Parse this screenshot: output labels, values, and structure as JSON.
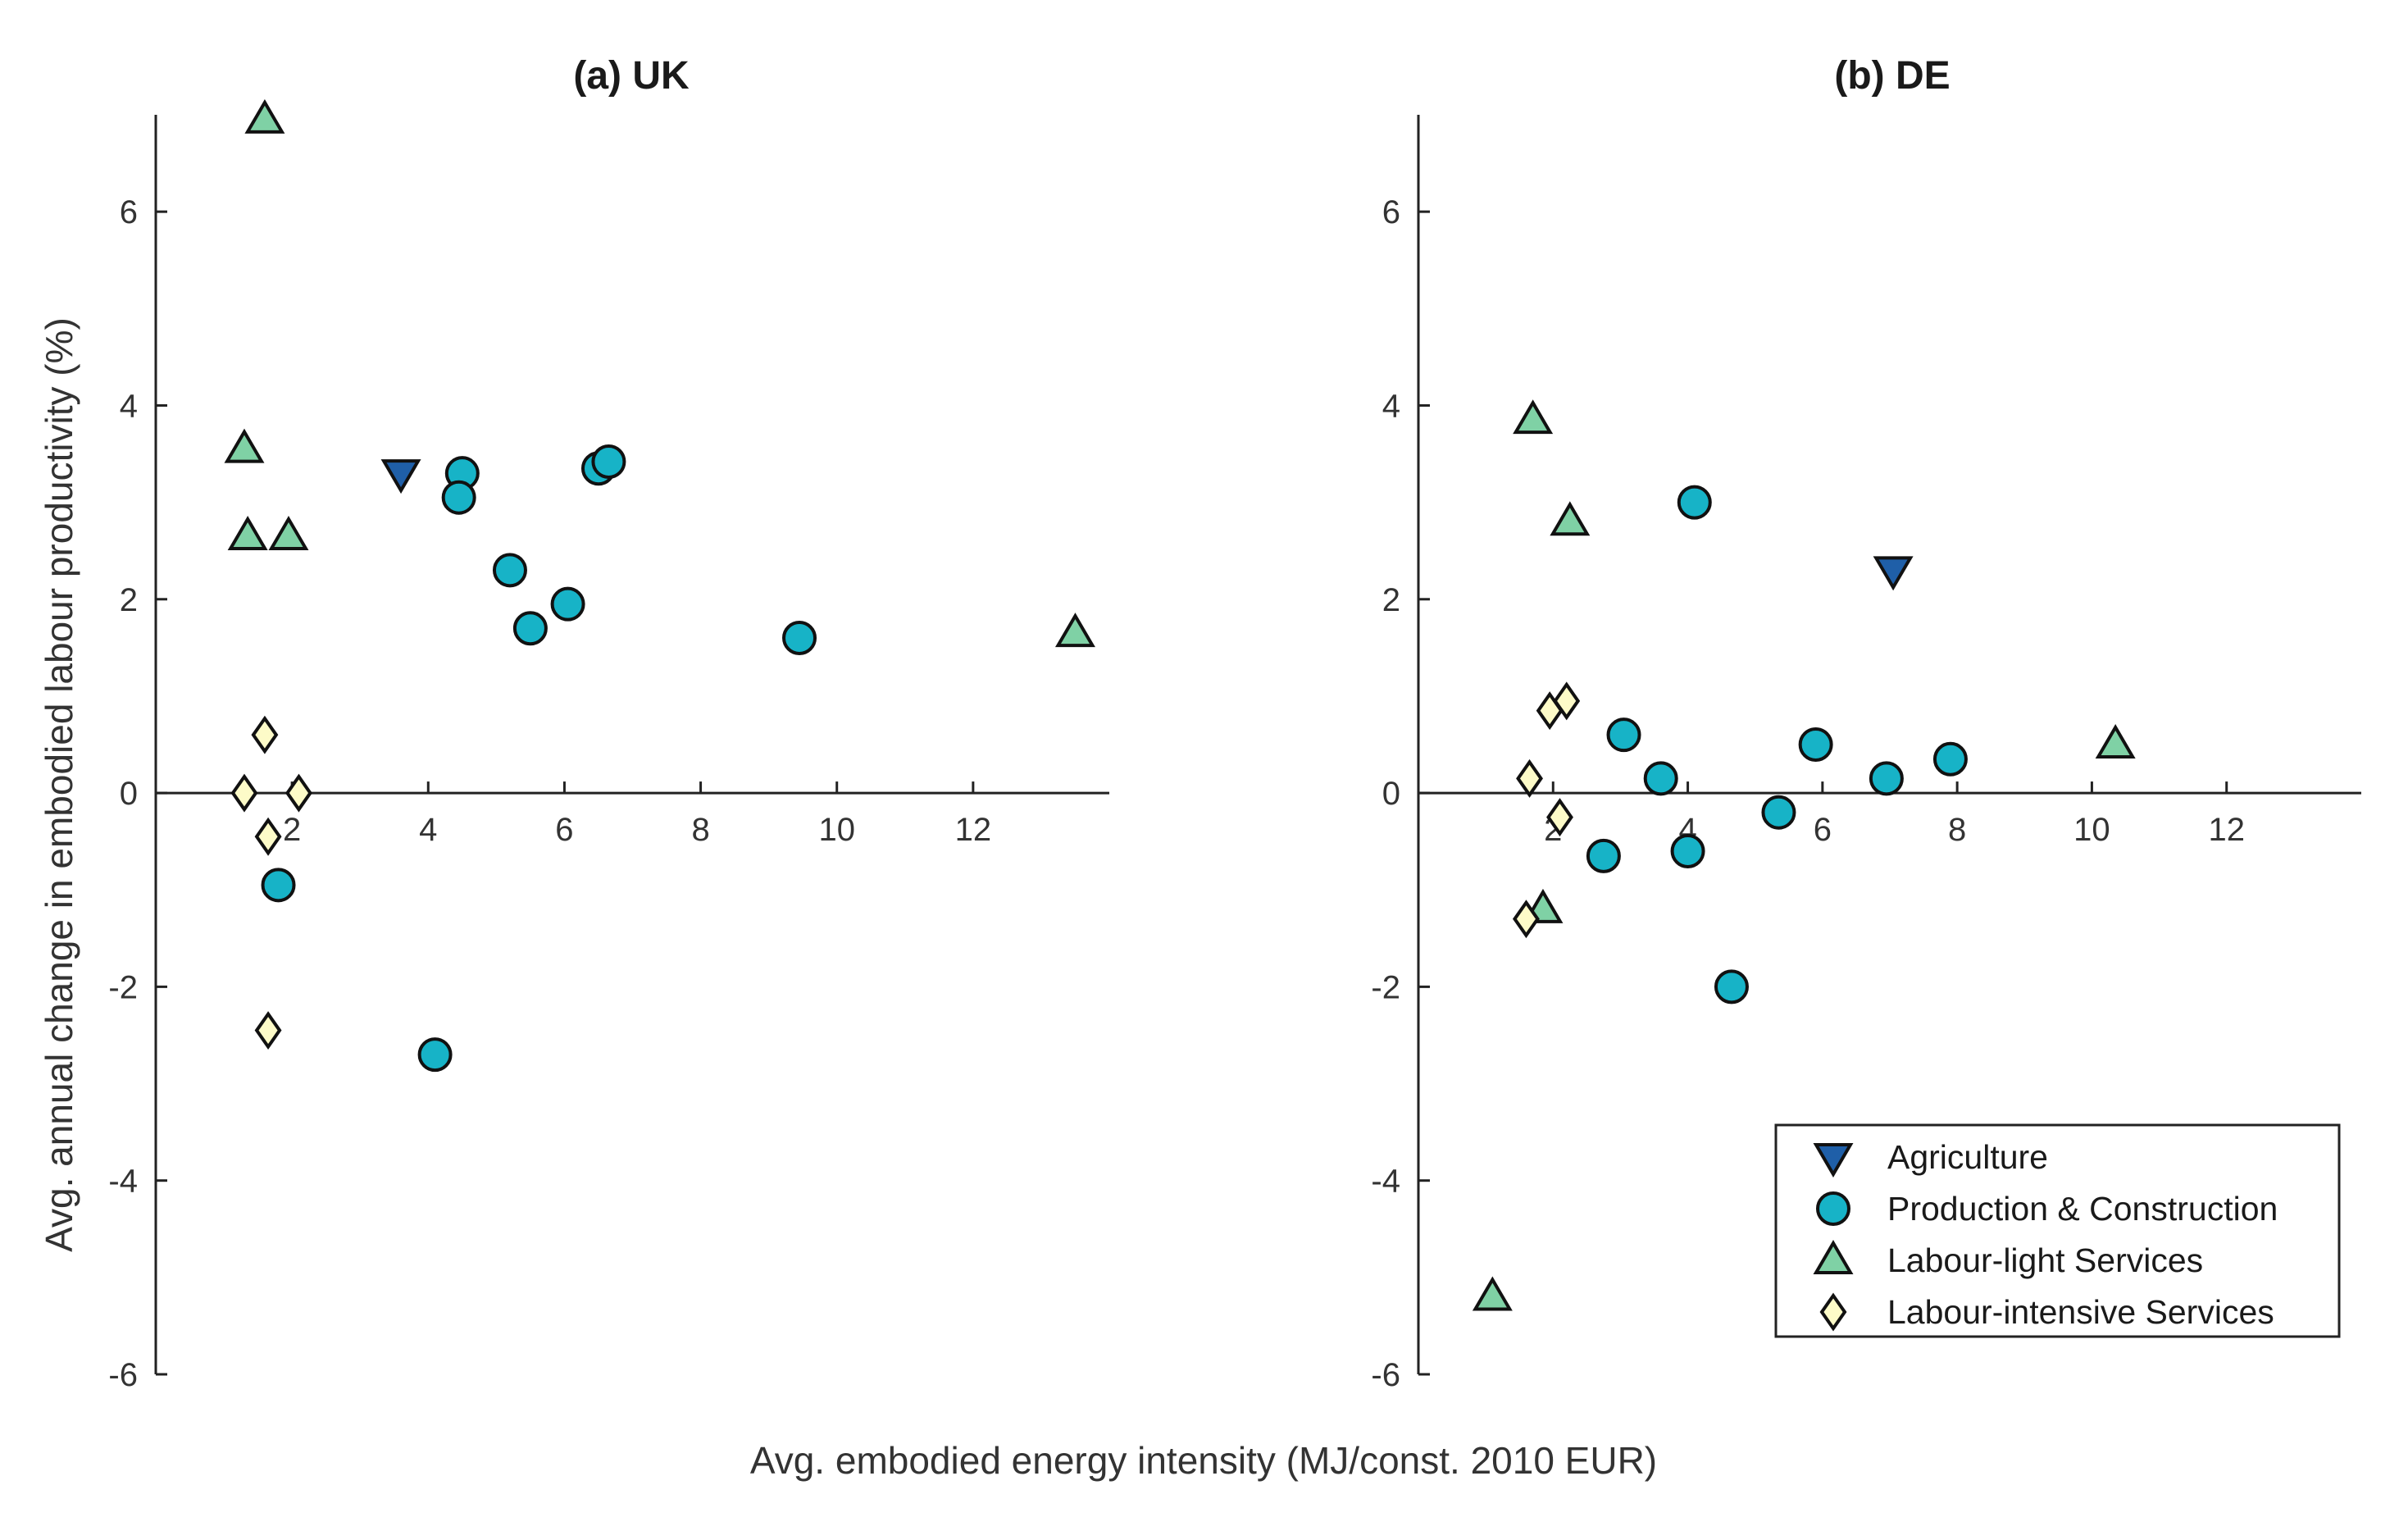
{
  "chart_data": {
    "type": "scatter",
    "xlabel": "Avg. embodied energy intensity (MJ/const. 2010 EUR)",
    "ylabel": "Avg. annual change in embodied labour productivity (%)",
    "xlim": [
      0,
      14
    ],
    "ylim": [
      -6,
      7
    ],
    "xticks": [
      2,
      4,
      6,
      8,
      10,
      12
    ],
    "yticks": [
      -6,
      -4,
      -2,
      0,
      2,
      4,
      6
    ],
    "categories": [
      {
        "name": "Agriculture",
        "marker": "triangle-down",
        "color": "#1f5fa8"
      },
      {
        "name": "Production & Construction",
        "marker": "circle",
        "color": "#17b3c7"
      },
      {
        "name": "Labour-light Services",
        "marker": "triangle-up",
        "color": "#7fd1a5"
      },
      {
        "name": "Labour-intensive Services",
        "marker": "diamond",
        "color": "#fdfbc8"
      }
    ],
    "legend_position": "bottom-right of panel (b)",
    "panels": [
      {
        "title": "(a) UK",
        "series": [
          {
            "name": "Agriculture",
            "points": [
              [
                3.6,
                3.3
              ]
            ]
          },
          {
            "name": "Production & Construction",
            "points": [
              [
                4.5,
                3.3
              ],
              [
                4.45,
                3.05
              ],
              [
                5.2,
                2.3
              ],
              [
                5.5,
                1.7
              ],
              [
                6.05,
                1.95
              ],
              [
                6.5,
                3.35
              ],
              [
                6.65,
                3.42
              ],
              [
                9.45,
                1.6
              ],
              [
                1.8,
                -0.95
              ],
              [
                4.1,
                -2.7
              ]
            ]
          },
          {
            "name": "Labour-light Services",
            "points": [
              [
                1.6,
                6.95
              ],
              [
                1.3,
                3.55
              ],
              [
                1.35,
                2.65
              ],
              [
                1.95,
                2.65
              ],
              [
                13.5,
                1.65
              ]
            ]
          },
          {
            "name": "Labour-intensive Services",
            "points": [
              [
                1.6,
                0.6
              ],
              [
                1.3,
                0.0
              ],
              [
                2.1,
                0.0
              ],
              [
                1.65,
                -0.45
              ],
              [
                1.65,
                -2.45
              ]
            ]
          }
        ]
      },
      {
        "title": "(b) DE",
        "series": [
          {
            "name": "Agriculture",
            "points": [
              [
                7.05,
                2.3
              ]
            ]
          },
          {
            "name": "Production & Construction",
            "points": [
              [
                4.1,
                3.0
              ],
              [
                3.05,
                0.6
              ],
              [
                3.6,
                0.15
              ],
              [
                2.75,
                -0.65
              ],
              [
                4.0,
                -0.6
              ],
              [
                5.35,
                -0.2
              ],
              [
                5.9,
                0.5
              ],
              [
                6.95,
                0.15
              ],
              [
                7.9,
                0.35
              ],
              [
                4.65,
                -2.0
              ]
            ]
          },
          {
            "name": "Labour-light Services",
            "points": [
              [
                1.7,
                3.85
              ],
              [
                2.25,
                2.8
              ],
              [
                1.85,
                -1.2
              ],
              [
                1.1,
                -5.2
              ],
              [
                10.35,
                0.5
              ]
            ]
          },
          {
            "name": "Labour-intensive Services",
            "points": [
              [
                1.95,
                0.85
              ],
              [
                2.2,
                0.95
              ],
              [
                1.65,
                0.15
              ],
              [
                2.1,
                -0.25
              ],
              [
                1.6,
                -1.3
              ]
            ]
          }
        ]
      }
    ]
  }
}
